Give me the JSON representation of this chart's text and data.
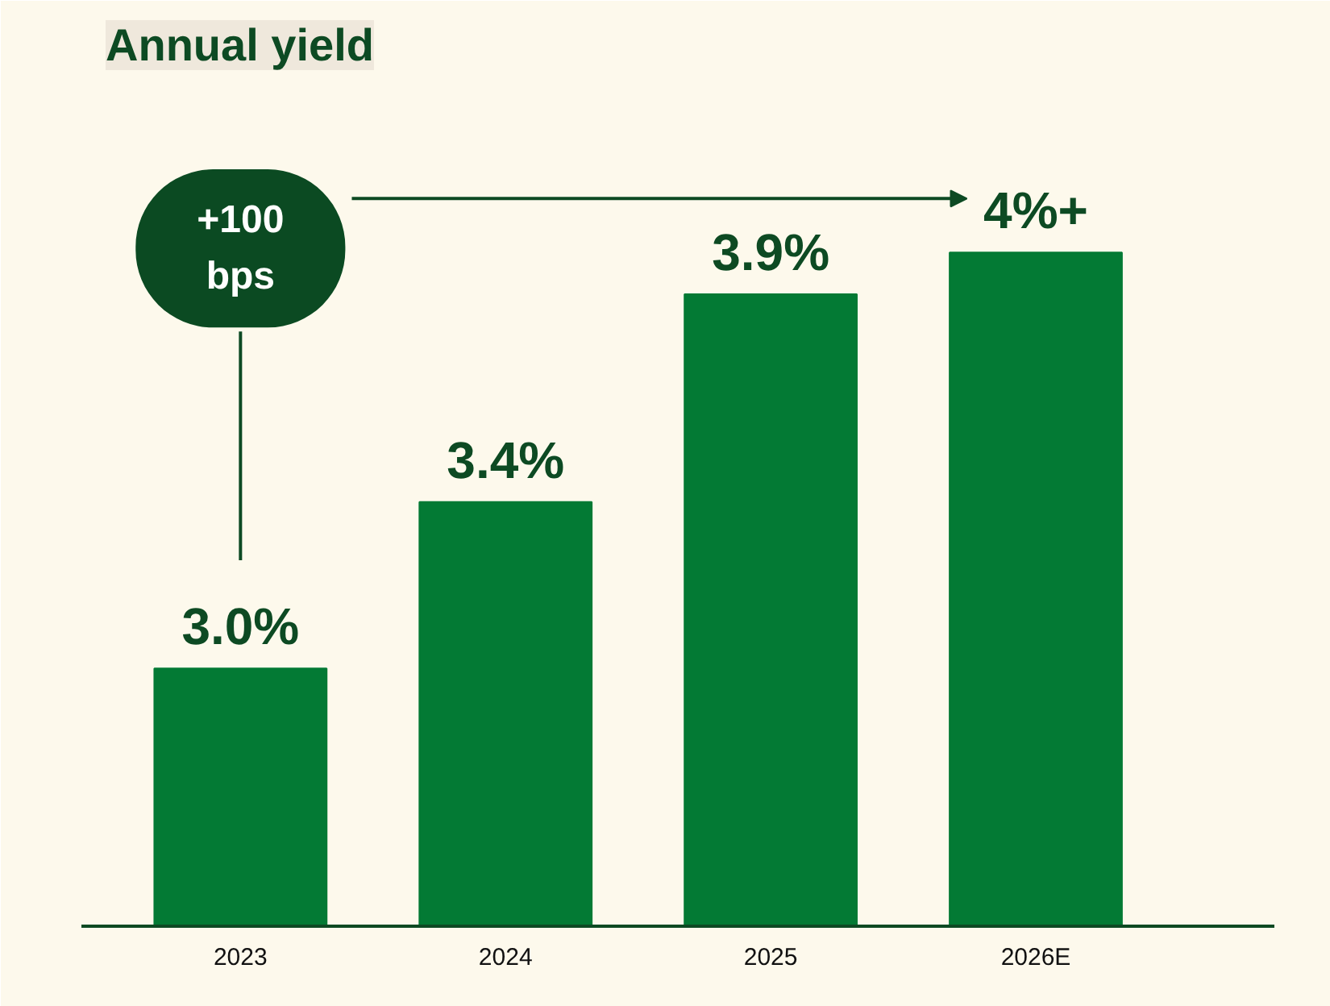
{
  "chart_data": {
    "type": "bar",
    "title": "Annual yield",
    "categories": [
      "2023",
      "2024",
      "2025",
      "2026E"
    ],
    "values": [
      3.0,
      3.4,
      3.9,
      4.0
    ],
    "value_labels": [
      "3.0%",
      "3.4%",
      "3.9%",
      "4%+"
    ],
    "color": "#037a34",
    "ylim": [
      2.38,
      4.4
    ],
    "tick_labels": "x",
    "grid": false,
    "annotations": [
      "+100\nbps"
    ]
  }
}
